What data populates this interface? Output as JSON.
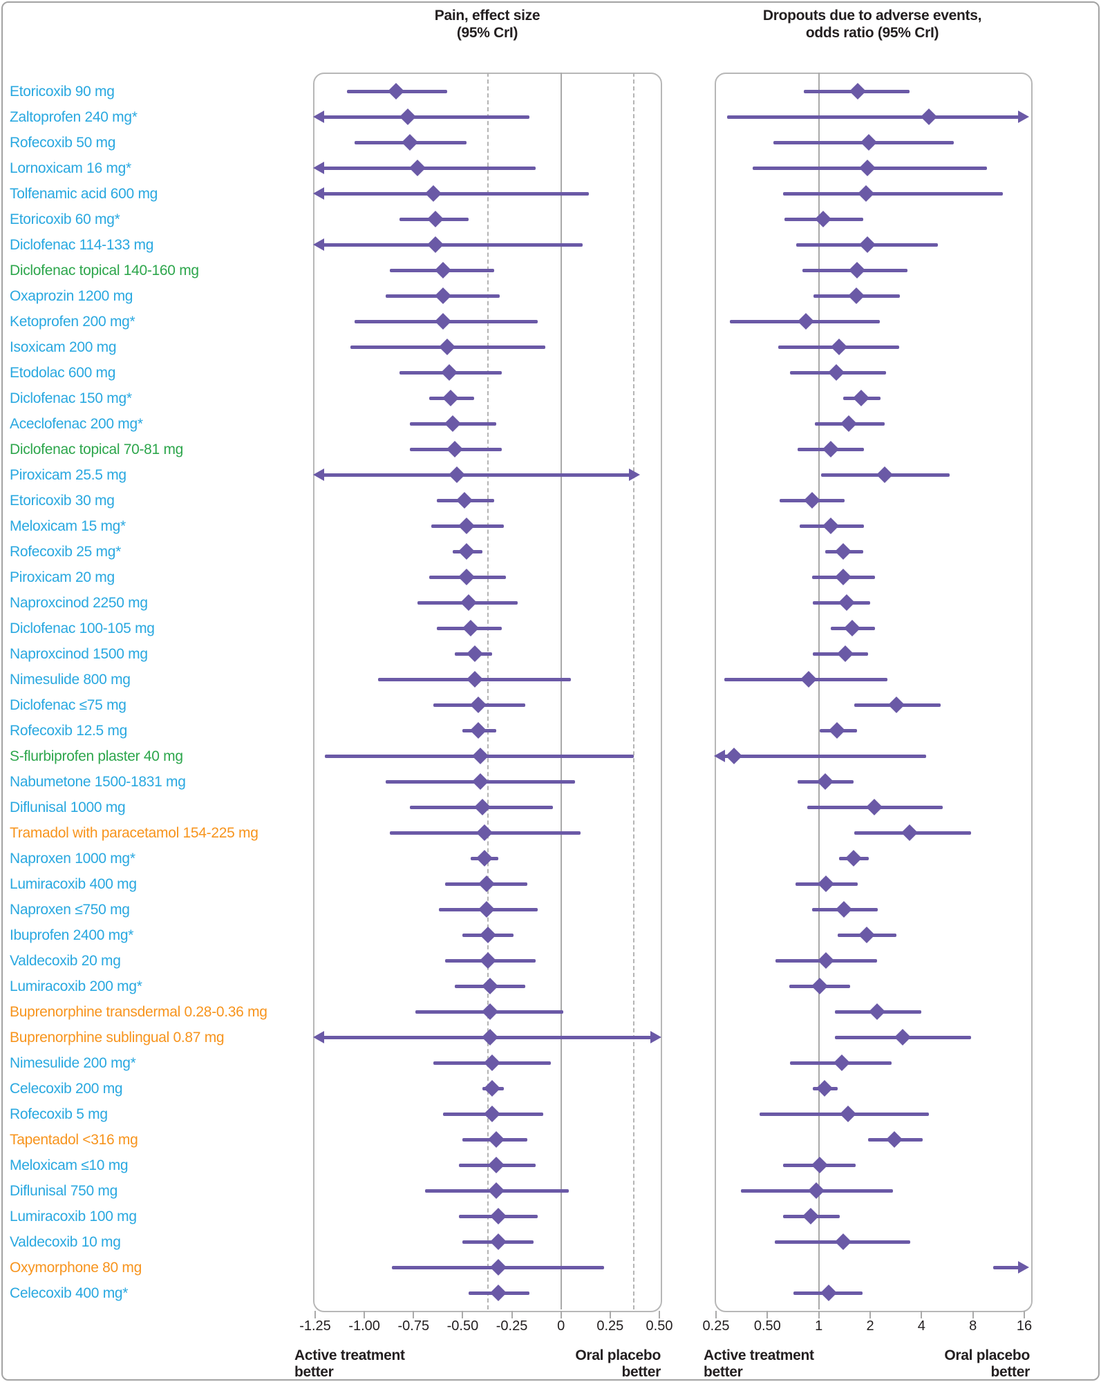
{
  "titles": {
    "pain_line1": "Pain, effect size",
    "pain_line2": "(95% CrI)",
    "dropouts_line1": "Dropouts due to adverse events,",
    "dropouts_line2": "odds ratio (95% CrI)"
  },
  "colors": {
    "marker_purple": "#6a59a6",
    "label_blue": "#29a8e0",
    "label_green": "#2da64c",
    "label_orange": "#f7941d",
    "text_dark": "#231f20",
    "grid_gray": "#a9a9a9"
  },
  "chart_data": {
    "type": "forest",
    "pain_axis": {
      "label": "Pain, effect size (95% CrI)",
      "range": [
        -1.25,
        0.5
      ],
      "scale": "linear",
      "ticks": [
        {
          "v": -1.25,
          "t": "-1.25"
        },
        {
          "v": -1.0,
          "t": "-1.00"
        },
        {
          "v": -0.75,
          "t": "-0.75"
        },
        {
          "v": -0.5,
          "t": "-0.50"
        },
        {
          "v": -0.25,
          "t": "-0.25"
        },
        {
          "v": 0,
          "t": "0"
        },
        {
          "v": 0.25,
          "t": "0.25"
        },
        {
          "v": 0.5,
          "t": "0.50"
        }
      ],
      "ref_lines": [
        {
          "v": 0,
          "style": "solid"
        },
        {
          "v": -0.37,
          "style": "dashed"
        },
        {
          "v": 0.37,
          "style": "dashed"
        }
      ],
      "note_left": "Active treatment\nbetter",
      "note_right": "Oral placebo\nbetter"
    },
    "dropout_axis": {
      "label": "Dropouts due to adverse events, odds ratio (95% CrI)",
      "range": [
        0.25,
        16
      ],
      "scale": "log2",
      "ticks": [
        {
          "v": 0.25,
          "t": "0.25"
        },
        {
          "v": 0.5,
          "t": "0.50"
        },
        {
          "v": 1,
          "t": "1"
        },
        {
          "v": 2,
          "t": "2"
        },
        {
          "v": 4,
          "t": "4"
        },
        {
          "v": 8,
          "t": "8"
        },
        {
          "v": 16,
          "t": "16"
        }
      ],
      "ref_lines": [
        {
          "v": 1,
          "style": "solid"
        }
      ],
      "note_left": "Active treatment\nbetter",
      "note_right": "Oral placebo\nbetter"
    },
    "rows": [
      {
        "label": "Etoricoxib 90 mg",
        "cls": "blue",
        "pain": {
          "est": -0.84,
          "lo": -1.09,
          "hi": -0.58,
          "la": 0,
          "ha": 0
        },
        "drop": {
          "est": 1.69,
          "lo": 0.82,
          "hi": 3.4,
          "la": 0,
          "ha": 0
        }
      },
      {
        "label": "Zaltoprofen 240 mg*",
        "cls": "blue",
        "pain": {
          "est": -0.78,
          "lo": -1.26,
          "hi": -0.16,
          "la": 1,
          "ha": 0
        },
        "drop": {
          "est": 4.4,
          "lo": 0.29,
          "hi": 17,
          "la": 0,
          "ha": 1
        }
      },
      {
        "label": "Rofecoxib 50 mg",
        "cls": "blue",
        "pain": {
          "est": -0.77,
          "lo": -1.05,
          "hi": -0.48,
          "la": 0,
          "ha": 0
        },
        "drop": {
          "est": 1.97,
          "lo": 0.54,
          "hi": 6.2,
          "la": 0,
          "ha": 0
        }
      },
      {
        "label": "Lornoxicam 16 mg*",
        "cls": "blue",
        "pain": {
          "est": -0.73,
          "lo": -1.26,
          "hi": -0.13,
          "la": 1,
          "ha": 0
        },
        "drop": {
          "est": 1.93,
          "lo": 0.41,
          "hi": 9.7,
          "la": 0,
          "ha": 0
        }
      },
      {
        "label": "Tolfenamic acid 600 mg",
        "cls": "blue",
        "pain": {
          "est": -0.65,
          "lo": -1.26,
          "hi": 0.14,
          "la": 1,
          "ha": 0
        },
        "drop": {
          "est": 1.9,
          "lo": 0.62,
          "hi": 12.0,
          "la": 0,
          "ha": 0
        }
      },
      {
        "label": "Etoricoxib 60 mg*",
        "cls": "blue",
        "pain": {
          "est": -0.64,
          "lo": -0.82,
          "hi": -0.47,
          "la": 0,
          "ha": 0
        },
        "drop": {
          "est": 1.06,
          "lo": 0.63,
          "hi": 1.83,
          "la": 0,
          "ha": 0
        }
      },
      {
        "label": "Diclofenac 114-133 mg",
        "cls": "blue",
        "pain": {
          "est": -0.64,
          "lo": -1.26,
          "hi": 0.11,
          "la": 1,
          "ha": 0
        },
        "drop": {
          "est": 1.92,
          "lo": 0.74,
          "hi": 5.0,
          "la": 0,
          "ha": 0
        }
      },
      {
        "label": "Diclofenac topical 140-160 mg",
        "cls": "green",
        "pain": {
          "est": -0.6,
          "lo": -0.87,
          "hi": -0.34,
          "la": 0,
          "ha": 0
        },
        "drop": {
          "est": 1.67,
          "lo": 0.8,
          "hi": 3.3,
          "la": 0,
          "ha": 0
        }
      },
      {
        "label": "Oxaprozin 1200 mg",
        "cls": "blue",
        "pain": {
          "est": -0.6,
          "lo": -0.89,
          "hi": -0.31,
          "la": 0,
          "ha": 0
        },
        "drop": {
          "est": 1.66,
          "lo": 0.93,
          "hi": 3.0,
          "la": 0,
          "ha": 0
        }
      },
      {
        "label": "Ketoprofen 200 mg*",
        "cls": "blue",
        "pain": {
          "est": -0.6,
          "lo": -1.05,
          "hi": -0.12,
          "la": 0,
          "ha": 0
        },
        "drop": {
          "est": 0.84,
          "lo": 0.3,
          "hi": 2.27,
          "la": 0,
          "ha": 0
        }
      },
      {
        "label": "Isoxicam 200 mg",
        "cls": "blue",
        "pain": {
          "est": -0.58,
          "lo": -1.07,
          "hi": -0.08,
          "la": 0,
          "ha": 0
        },
        "drop": {
          "est": 1.31,
          "lo": 0.58,
          "hi": 2.96,
          "la": 0,
          "ha": 0
        }
      },
      {
        "label": "Etodolac 600 mg",
        "cls": "blue",
        "pain": {
          "est": -0.57,
          "lo": -0.82,
          "hi": -0.3,
          "la": 0,
          "ha": 0
        },
        "drop": {
          "est": 1.27,
          "lo": 0.68,
          "hi": 2.47,
          "la": 0,
          "ha": 0
        }
      },
      {
        "label": "Diclofenac 150 mg*",
        "cls": "blue",
        "pain": {
          "est": -0.56,
          "lo": -0.67,
          "hi": -0.44,
          "la": 0,
          "ha": 0
        },
        "drop": {
          "est": 1.77,
          "lo": 1.39,
          "hi": 2.3,
          "la": 0,
          "ha": 0
        }
      },
      {
        "label": "Aceclofenac 200 mg*",
        "cls": "blue",
        "pain": {
          "est": -0.55,
          "lo": -0.77,
          "hi": -0.33,
          "la": 0,
          "ha": 0
        },
        "drop": {
          "est": 1.5,
          "lo": 0.95,
          "hi": 2.43,
          "la": 0,
          "ha": 0
        }
      },
      {
        "label": "Diclofenac topical 70-81 mg",
        "cls": "green",
        "pain": {
          "est": -0.54,
          "lo": -0.77,
          "hi": -0.3,
          "la": 0,
          "ha": 0
        },
        "drop": {
          "est": 1.18,
          "lo": 0.75,
          "hi": 1.84,
          "la": 0,
          "ha": 0
        }
      },
      {
        "label": "Piroxicam 25.5 mg",
        "cls": "blue",
        "pain": {
          "est": -0.53,
          "lo": -1.26,
          "hi": 0.4,
          "la": 1,
          "ha": 1
        },
        "drop": {
          "est": 2.43,
          "lo": 1.03,
          "hi": 5.85,
          "la": 0,
          "ha": 0
        }
      },
      {
        "label": "Etoricoxib 30 mg",
        "cls": "blue",
        "pain": {
          "est": -0.49,
          "lo": -0.63,
          "hi": -0.34,
          "la": 0,
          "ha": 0
        },
        "drop": {
          "est": 0.91,
          "lo": 0.59,
          "hi": 1.41,
          "la": 0,
          "ha": 0
        }
      },
      {
        "label": "Meloxicam 15 mg*",
        "cls": "blue",
        "pain": {
          "est": -0.48,
          "lo": -0.66,
          "hi": -0.29,
          "la": 0,
          "ha": 0
        },
        "drop": {
          "est": 1.18,
          "lo": 0.77,
          "hi": 1.84,
          "la": 0,
          "ha": 0
        }
      },
      {
        "label": "Rofecoxib 25 mg*",
        "cls": "blue",
        "pain": {
          "est": -0.48,
          "lo": -0.55,
          "hi": -0.4,
          "la": 0,
          "ha": 0
        },
        "drop": {
          "est": 1.39,
          "lo": 1.09,
          "hi": 1.82,
          "la": 0,
          "ha": 0
        }
      },
      {
        "label": "Piroxicam 20 mg",
        "cls": "blue",
        "pain": {
          "est": -0.48,
          "lo": -0.67,
          "hi": -0.28,
          "la": 0,
          "ha": 0
        },
        "drop": {
          "est": 1.39,
          "lo": 0.91,
          "hi": 2.13,
          "la": 0,
          "ha": 0
        }
      },
      {
        "label": "Naproxcinod 2250 mg",
        "cls": "blue",
        "pain": {
          "est": -0.47,
          "lo": -0.73,
          "hi": -0.22,
          "la": 0,
          "ha": 0
        },
        "drop": {
          "est": 1.45,
          "lo": 0.92,
          "hi": 2.0,
          "la": 0,
          "ha": 0
        }
      },
      {
        "label": "Diclofenac 100-105 mg",
        "cls": "blue",
        "pain": {
          "est": -0.46,
          "lo": -0.63,
          "hi": -0.3,
          "la": 0,
          "ha": 0
        },
        "drop": {
          "est": 1.57,
          "lo": 1.17,
          "hi": 2.13,
          "la": 0,
          "ha": 0
        }
      },
      {
        "label": "Naproxcinod 1500 mg",
        "cls": "blue",
        "pain": {
          "est": -0.44,
          "lo": -0.54,
          "hi": -0.35,
          "la": 0,
          "ha": 0
        },
        "drop": {
          "est": 1.43,
          "lo": 0.92,
          "hi": 1.94,
          "la": 0,
          "ha": 0
        }
      },
      {
        "label": "Nimesulide 800 mg",
        "cls": "blue",
        "pain": {
          "est": -0.44,
          "lo": -0.93,
          "hi": 0.05,
          "la": 0,
          "ha": 0
        },
        "drop": {
          "est": 0.87,
          "lo": 0.28,
          "hi": 2.52,
          "la": 0,
          "ha": 0
        }
      },
      {
        "label": "Diclofenac ≤75 mg",
        "cls": "blue",
        "pain": {
          "est": -0.42,
          "lo": -0.65,
          "hi": -0.18,
          "la": 0,
          "ha": 0
        },
        "drop": {
          "est": 2.85,
          "lo": 1.62,
          "hi": 5.2,
          "la": 0,
          "ha": 0
        }
      },
      {
        "label": "Rofecoxib 12.5 mg",
        "cls": "blue",
        "pain": {
          "est": -0.42,
          "lo": -0.5,
          "hi": -0.33,
          "la": 0,
          "ha": 0
        },
        "drop": {
          "est": 1.28,
          "lo": 1.01,
          "hi": 1.67,
          "la": 0,
          "ha": 0
        }
      },
      {
        "label": "S-flurbiprofen plaster 40 mg",
        "cls": "green",
        "pain": {
          "est": -0.41,
          "lo": -1.2,
          "hi": 0.37,
          "la": 0,
          "ha": 0
        },
        "drop": {
          "est": 0.32,
          "lo": 0.243,
          "hi": 4.25,
          "la": 1,
          "ha": 0
        }
      },
      {
        "label": "Nabumetone 1500-1831 mg",
        "cls": "blue",
        "pain": {
          "est": -0.41,
          "lo": -0.89,
          "hi": 0.07,
          "la": 0,
          "ha": 0
        },
        "drop": {
          "est": 1.09,
          "lo": 0.75,
          "hi": 1.6,
          "la": 0,
          "ha": 0
        }
      },
      {
        "label": "Diflunisal 1000 mg",
        "cls": "blue",
        "pain": {
          "est": -0.4,
          "lo": -0.77,
          "hi": -0.04,
          "la": 0,
          "ha": 0
        },
        "drop": {
          "est": 2.11,
          "lo": 0.86,
          "hi": 5.3,
          "la": 0,
          "ha": 0
        }
      },
      {
        "label": "Tramadol with paracetamol 154-225 mg",
        "cls": "orange",
        "pain": {
          "est": -0.39,
          "lo": -0.87,
          "hi": 0.1,
          "la": 0,
          "ha": 0
        },
        "drop": {
          "est": 3.4,
          "lo": 1.62,
          "hi": 7.8,
          "la": 0,
          "ha": 0
        }
      },
      {
        "label": "Naproxen 1000 mg*",
        "cls": "blue",
        "pain": {
          "est": -0.39,
          "lo": -0.46,
          "hi": -0.32,
          "la": 0,
          "ha": 0
        },
        "drop": {
          "est": 1.6,
          "lo": 1.31,
          "hi": 1.96,
          "la": 0,
          "ha": 0
        }
      },
      {
        "label": "Lumiracoxib 400 mg",
        "cls": "blue",
        "pain": {
          "est": -0.38,
          "lo": -0.59,
          "hi": -0.17,
          "la": 0,
          "ha": 0
        },
        "drop": {
          "est": 1.1,
          "lo": 0.73,
          "hi": 1.69,
          "la": 0,
          "ha": 0
        }
      },
      {
        "label": "Naproxen ≤750 mg",
        "cls": "blue",
        "pain": {
          "est": -0.38,
          "lo": -0.62,
          "hi": -0.12,
          "la": 0,
          "ha": 0
        },
        "drop": {
          "est": 1.4,
          "lo": 0.91,
          "hi": 2.21,
          "la": 0,
          "ha": 0
        }
      },
      {
        "label": "Ibuprofen 2400 mg*",
        "cls": "blue",
        "pain": {
          "est": -0.37,
          "lo": -0.5,
          "hi": -0.24,
          "la": 0,
          "ha": 0
        },
        "drop": {
          "est": 1.91,
          "lo": 1.29,
          "hi": 2.85,
          "la": 0,
          "ha": 0
        }
      },
      {
        "label": "Valdecoxib 20 mg",
        "cls": "blue",
        "pain": {
          "est": -0.37,
          "lo": -0.59,
          "hi": -0.13,
          "la": 0,
          "ha": 0
        },
        "drop": {
          "est": 1.1,
          "lo": 0.56,
          "hi": 2.2,
          "la": 0,
          "ha": 0
        }
      },
      {
        "label": "Lumiracoxib 200 mg*",
        "cls": "blue",
        "pain": {
          "est": -0.36,
          "lo": -0.54,
          "hi": -0.18,
          "la": 0,
          "ha": 0
        },
        "drop": {
          "est": 1.01,
          "lo": 0.67,
          "hi": 1.52,
          "la": 0,
          "ha": 0
        }
      },
      {
        "label": "Buprenorphine transdermal 0.28-0.36 mg",
        "cls": "orange",
        "pain": {
          "est": -0.36,
          "lo": -0.74,
          "hi": 0.01,
          "la": 0,
          "ha": 0
        },
        "drop": {
          "est": 2.2,
          "lo": 1.24,
          "hi": 4.0,
          "la": 0,
          "ha": 0
        }
      },
      {
        "label": "Buprenorphine sublingual 0.87 mg",
        "cls": "orange",
        "pain": {
          "est": -0.36,
          "lo": -1.26,
          "hi": 0.51,
          "la": 1,
          "ha": 1
        },
        "drop": {
          "est": 3.1,
          "lo": 1.24,
          "hi": 7.8,
          "la": 0,
          "ha": 0
        }
      },
      {
        "label": "Nimesulide 200 mg*",
        "cls": "blue",
        "pain": {
          "est": -0.35,
          "lo": -0.65,
          "hi": -0.05,
          "la": 0,
          "ha": 0
        },
        "drop": {
          "est": 1.36,
          "lo": 0.68,
          "hi": 2.67,
          "la": 0,
          "ha": 0
        }
      },
      {
        "label": "Celecoxib 200 mg",
        "cls": "blue",
        "pain": {
          "est": -0.35,
          "lo": -0.4,
          "hi": -0.29,
          "la": 0,
          "ha": 0
        },
        "drop": {
          "est": 1.08,
          "lo": 0.92,
          "hi": 1.29,
          "la": 0,
          "ha": 0
        }
      },
      {
        "label": "Rofecoxib 5 mg",
        "cls": "blue",
        "pain": {
          "est": -0.35,
          "lo": -0.6,
          "hi": -0.09,
          "la": 0,
          "ha": 0
        },
        "drop": {
          "est": 1.49,
          "lo": 0.45,
          "hi": 4.4,
          "la": 0,
          "ha": 0
        }
      },
      {
        "label": "Tapentadol <316 mg",
        "cls": "orange",
        "pain": {
          "est": -0.33,
          "lo": -0.5,
          "hi": -0.17,
          "la": 0,
          "ha": 0
        },
        "drop": {
          "est": 2.77,
          "lo": 1.94,
          "hi": 4.06,
          "la": 0,
          "ha": 0
        }
      },
      {
        "label": "Meloxicam ≤10 mg",
        "cls": "blue",
        "pain": {
          "est": -0.33,
          "lo": -0.52,
          "hi": -0.13,
          "la": 0,
          "ha": 0
        },
        "drop": {
          "est": 1.01,
          "lo": 0.62,
          "hi": 1.64,
          "la": 0,
          "ha": 0
        }
      },
      {
        "label": "Diflunisal 750 mg",
        "cls": "blue",
        "pain": {
          "est": -0.33,
          "lo": -0.69,
          "hi": 0.04,
          "la": 0,
          "ha": 0
        },
        "drop": {
          "est": 0.97,
          "lo": 0.35,
          "hi": 2.72,
          "la": 0,
          "ha": 0
        }
      },
      {
        "label": "Lumiracoxib 100 mg",
        "cls": "blue",
        "pain": {
          "est": -0.32,
          "lo": -0.52,
          "hi": -0.12,
          "la": 0,
          "ha": 0
        },
        "drop": {
          "est": 0.9,
          "lo": 0.62,
          "hi": 1.33,
          "la": 0,
          "ha": 0
        }
      },
      {
        "label": "Valdecoxib 10 mg",
        "cls": "blue",
        "pain": {
          "est": -0.32,
          "lo": -0.5,
          "hi": -0.14,
          "la": 0,
          "ha": 0
        },
        "drop": {
          "est": 1.39,
          "lo": 0.55,
          "hi": 3.43,
          "la": 0,
          "ha": 0
        }
      },
      {
        "label": "Oxymorphone 80 mg",
        "cls": "orange",
        "pain": {
          "est": -0.32,
          "lo": -0.86,
          "hi": 0.22,
          "la": 0,
          "ha": 0
        },
        "drop": {
          "est": null,
          "lo": 10.5,
          "hi": 17,
          "la": 0,
          "ha": 1
        }
      },
      {
        "label": "Celecoxib 400 mg*",
        "cls": "blue",
        "pain": {
          "est": -0.32,
          "lo": -0.47,
          "hi": -0.16,
          "la": 0,
          "ha": 0
        },
        "drop": {
          "est": 1.14,
          "lo": 0.71,
          "hi": 1.8,
          "la": 0,
          "ha": 0
        }
      }
    ]
  }
}
